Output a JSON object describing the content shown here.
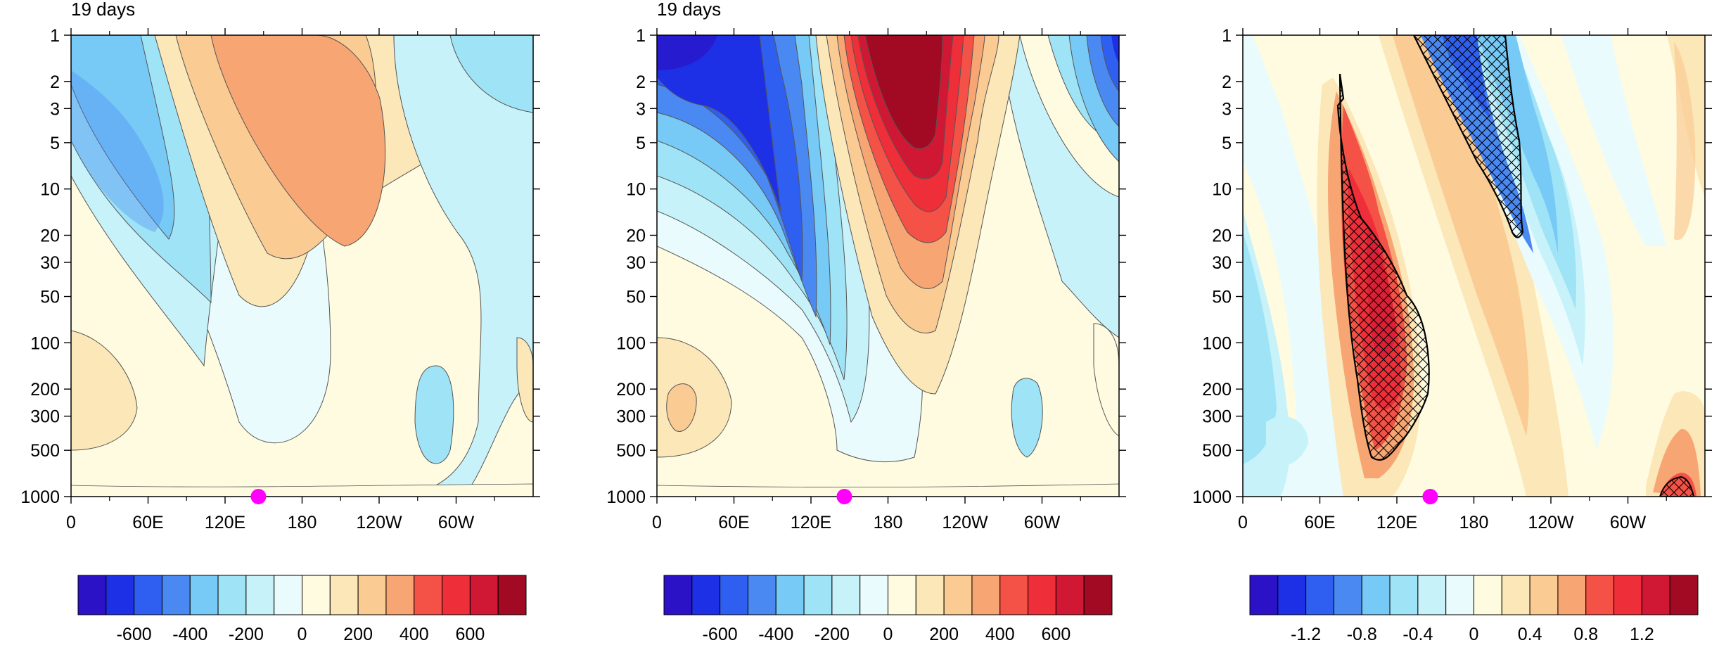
{
  "panels": [
    {
      "title": "19 days",
      "colorbar_ticks": [
        "-600",
        "-400",
        "-200",
        "0",
        "200",
        "400",
        "600"
      ],
      "marker_lon": 146,
      "hatch": false
    },
    {
      "title": "19 days",
      "colorbar_ticks": [
        "-600",
        "-400",
        "-200",
        "0",
        "200",
        "400",
        "600"
      ],
      "marker_lon": 146,
      "hatch": false
    },
    {
      "title": "",
      "colorbar_ticks": [
        "-1.2",
        "-0.8",
        "-0.4",
        "0",
        "0.4",
        "0.8",
        "1.2"
      ],
      "marker_lon": 146,
      "hatch": true
    }
  ],
  "chart_data": [
    {
      "type": "heatmap",
      "title": "19 days",
      "x_tick_labels": [
        "0",
        "60E",
        "120E",
        "180",
        "120W",
        "60W"
      ],
      "y_tick_labels": [
        "1",
        "2",
        "3",
        "5",
        "10",
        "20",
        "30",
        "50",
        "100",
        "200",
        "300",
        "500",
        "1000"
      ],
      "y_scale": "log",
      "y_reversed": true,
      "colorbar_labels": [
        "-600",
        "-400",
        "-200",
        "0",
        "200",
        "400",
        "600"
      ]
    },
    {
      "type": "heatmap",
      "title": "19 days",
      "x_tick_labels": [
        "0",
        "60E",
        "120E",
        "180",
        "120W",
        "60W"
      ],
      "y_tick_labels": [
        "1",
        "2",
        "3",
        "5",
        "10",
        "20",
        "30",
        "50",
        "100",
        "200",
        "300",
        "500",
        "1000"
      ],
      "y_scale": "log",
      "y_reversed": true,
      "colorbar_labels": [
        "-600",
        "-400",
        "-200",
        "0",
        "200",
        "400",
        "600"
      ]
    },
    {
      "type": "heatmap",
      "title": "",
      "x_tick_labels": [
        "0",
        "60E",
        "120E",
        "180",
        "120W",
        "60W"
      ],
      "y_tick_labels": [
        "1",
        "2",
        "3",
        "5",
        "10",
        "20",
        "30",
        "50",
        "100",
        "200",
        "300",
        "500",
        "1000"
      ],
      "y_scale": "log",
      "y_reversed": true,
      "colorbar_labels": [
        "-1.2",
        "-0.8",
        "-0.4",
        "0",
        "0.4",
        "0.8",
        "1.2"
      ]
    }
  ],
  "colors": {
    "levels": [
      "#2b12c6",
      "#1e30e6",
      "#2f5ff0",
      "#4a88f2",
      "#77c9f6",
      "#9fe3f7",
      "#c8f2fa",
      "#e9fbfc",
      "#fefbe0",
      "#fbe7b8",
      "#fbcb94",
      "#f7a572",
      "#f45147",
      "#ee2e38",
      "#d01733",
      "#a20a23"
    ],
    "marker": "#ff00ff",
    "line": "#444444",
    "hatch_line": "#000000"
  }
}
